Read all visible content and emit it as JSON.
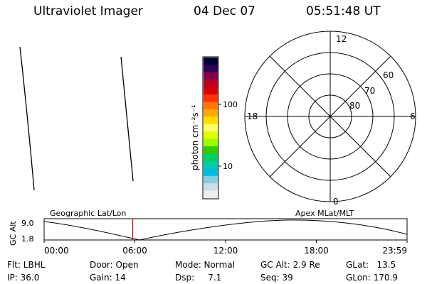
{
  "header": {
    "title": "Ultraviolet Imager",
    "date": "04 Dec 07",
    "time": "05:51:48 UT"
  },
  "colorbar": {
    "unit_label": "photon cm⁻²s⁻¹",
    "ticks": [
      "100",
      "10"
    ],
    "colors": [
      "#000033",
      "#330055",
      "#880044",
      "#bb0022",
      "#dd0000",
      "#ff3300",
      "#ff7700",
      "#ffaa00",
      "#ffdd00",
      "#ffff66",
      "#ddff00",
      "#99ff00",
      "#33cc00",
      "#00cc66",
      "#00ccaa",
      "#00bbdd",
      "#88ccdd",
      "#ccdde8",
      "#eeeeee"
    ]
  },
  "polar": {
    "mlt_labels": [
      "12",
      "18",
      "6",
      "0"
    ],
    "lat_labels": [
      "60",
      "70",
      "80"
    ]
  },
  "timeline": {
    "ylabel": "GC Alt",
    "y_ticks": [
      "9.0",
      "1.8"
    ],
    "left_label": "Geographic Lat/Lon",
    "right_label": "Apex MLat/MLT",
    "x_ticks": [
      "00:00",
      "06:00",
      "12:00",
      "18:00",
      "23:59"
    ],
    "current_marker_hours": 5.86,
    "marker_color": "#cc0000"
  },
  "info": {
    "flt": "Flt: LBHL",
    "ip": "IP: 36.0",
    "door": "Door: Open",
    "gain": "Gain: 14",
    "mode": "Mode: Normal",
    "dsp": "Dsp:     7.1",
    "gcalt": "GC Alt: 2.9 Re",
    "seq": "Seq: 39",
    "glat": "GLat:   13.5",
    "glon": "GLon: 170.9"
  }
}
